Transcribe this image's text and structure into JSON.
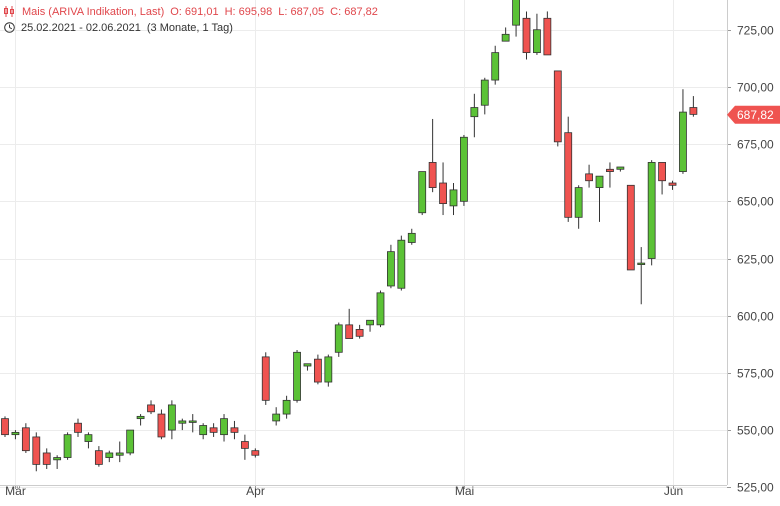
{
  "header": {
    "instrument_label": "Mais (ARIVA Indikation, Last)",
    "open_label": "O: 691,01",
    "high_label": "H: 695,98",
    "low_label": "L: 687,05",
    "close_label": "C: 687,82",
    "date_range": "25.02.2021 - 02.06.2021",
    "period": "(3 Monate, 1 Tag)",
    "chart_icon": "candlestick-icon",
    "clock_icon": "clock-icon"
  },
  "colors": {
    "up": "#5bc236",
    "down": "#ef5350",
    "grid": "#ececec",
    "axis_text": "#444444",
    "last_price_bg": "#ef5350"
  },
  "last_price_label": "687,82",
  "chart_data": {
    "type": "candlestick",
    "title": "Mais (ARIVA Indikation, Last)",
    "xlabel": "",
    "ylabel": "",
    "ylim": [
      519,
      738
    ],
    "y_ticks": [
      "525,00",
      "550,00",
      "575,00",
      "600,00",
      "625,00",
      "650,00",
      "675,00",
      "700,00",
      "725,00"
    ],
    "x_ticks": [
      {
        "label": "Mär",
        "index": 1
      },
      {
        "label": "Apr",
        "index": 24
      },
      {
        "label": "Mai",
        "index": 44
      },
      {
        "label": "Jun",
        "index": 64
      }
    ],
    "grid": true,
    "candles": [
      [
        555,
        556,
        547,
        548
      ],
      [
        548,
        550,
        546,
        549
      ],
      [
        551,
        553,
        540,
        541
      ],
      [
        547,
        549,
        532,
        535
      ],
      [
        540,
        542,
        533,
        535
      ],
      [
        537,
        539,
        533,
        538
      ],
      [
        538,
        549,
        537,
        548
      ],
      [
        553,
        555,
        547,
        549
      ],
      [
        545,
        549,
        542,
        548
      ],
      [
        541,
        543,
        534,
        535
      ],
      [
        538,
        541,
        536,
        540
      ],
      [
        539,
        545,
        536,
        540
      ],
      [
        540,
        550,
        539,
        550
      ],
      [
        555,
        557,
        552,
        556
      ],
      [
        561,
        563,
        557,
        558
      ],
      [
        557,
        559,
        546,
        547
      ],
      [
        550,
        563,
        546,
        561
      ],
      [
        553,
        555,
        550,
        554
      ],
      [
        554,
        557,
        549,
        554
      ],
      [
        548,
        553,
        546,
        552
      ],
      [
        551,
        553,
        547,
        549
      ],
      [
        548,
        557,
        545,
        555
      ],
      [
        551,
        554,
        546,
        549
      ],
      [
        545,
        548,
        537,
        542
      ],
      [
        541,
        542,
        538,
        539
      ],
      [
        582,
        584,
        561,
        563
      ],
      [
        554,
        560,
        552,
        557
      ],
      [
        557,
        565,
        555,
        563
      ],
      [
        563,
        585,
        562,
        584
      ],
      [
        578,
        579,
        576,
        579
      ],
      [
        581,
        583,
        570,
        571
      ],
      [
        571,
        583,
        569,
        582
      ],
      [
        584,
        597,
        582,
        596
      ],
      [
        596,
        603,
        590,
        590
      ],
      [
        594,
        596,
        590,
        591
      ],
      [
        596,
        598,
        593,
        598
      ],
      [
        596,
        611,
        595,
        610
      ],
      [
        613,
        631,
        612,
        628
      ],
      [
        612,
        635,
        611,
        633
      ],
      [
        632,
        638,
        631,
        636
      ],
      [
        645,
        663,
        644,
        663
      ],
      [
        667,
        686,
        654,
        656
      ],
      [
        658,
        667,
        644,
        649
      ],
      [
        648,
        658,
        644,
        655
      ],
      [
        650,
        679,
        648,
        678
      ],
      [
        687,
        697,
        678,
        691
      ],
      [
        692,
        704,
        688,
        703
      ],
      [
        703,
        718,
        701,
        715
      ],
      [
        720,
        726,
        720,
        723
      ],
      [
        727,
        741,
        722,
        740
      ],
      [
        730,
        733,
        712,
        715
      ],
      [
        715,
        732,
        714,
        725
      ],
      [
        730,
        733,
        714,
        714
      ],
      [
        707,
        707,
        674,
        676
      ],
      [
        680,
        687,
        641,
        643
      ],
      [
        643,
        657,
        638,
        656
      ],
      [
        662,
        666,
        656,
        659
      ],
      [
        656,
        660,
        641,
        661
      ],
      [
        664,
        667,
        656,
        663
      ],
      [
        664,
        665,
        663,
        665
      ],
      [
        657,
        657,
        620,
        620
      ],
      [
        623,
        630,
        605,
        623
      ],
      [
        625,
        668,
        622,
        667
      ],
      [
        667,
        667,
        653,
        659
      ],
      [
        658,
        659,
        655,
        657
      ],
      [
        663,
        699,
        662,
        689
      ],
      [
        691,
        696,
        687,
        688
      ]
    ],
    "last_price": 687.82
  }
}
